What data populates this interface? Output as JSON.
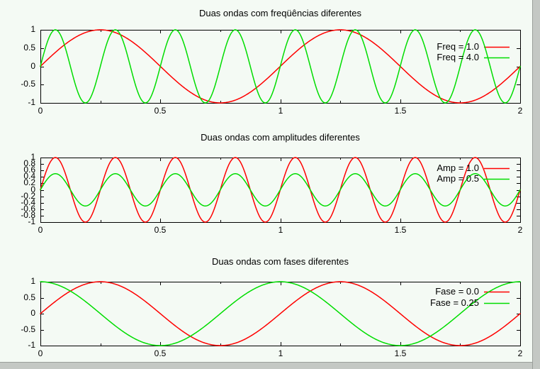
{
  "page": {
    "background": "#f4faf4",
    "text_color": "#000000",
    "scrollbar": {
      "track": "#c4c8c4",
      "edge": "#9a9e9a"
    }
  },
  "chart_data": [
    {
      "type": "line",
      "title": "Duas ondas com freqüências diferentes",
      "xlabel": "",
      "ylabel": "",
      "xlim": [
        0,
        2
      ],
      "ylim": [
        -1,
        1
      ],
      "grid": false,
      "legend_position": "top-right-inside",
      "xticks": {
        "values": [
          0,
          0.5,
          1,
          1.5,
          2
        ],
        "labels": [
          "0",
          "0.5",
          "1",
          "1.5",
          "2"
        ],
        "minor_values": [
          0.25,
          0.75,
          1.25,
          1.75
        ]
      },
      "yticks": {
        "values": [
          1,
          0.5,
          0,
          -0.5,
          -1
        ],
        "labels": [
          "1",
          "0.5",
          "0",
          "-0.5",
          "-1"
        ]
      },
      "series": [
        {
          "name": "Freq = 1.0",
          "color": "#ff0000",
          "amplitude": 1.0,
          "frequency": 1.0,
          "phase": 0.0,
          "formula": "y = 1.0*sin(2*pi*1.0*(x+0.0))"
        },
        {
          "name": "Freq = 4.0",
          "color": "#00dd00",
          "amplitude": 1.0,
          "frequency": 4.0,
          "phase": 0.0,
          "formula": "y = 1.0*sin(2*pi*4.0*(x+0.0))"
        }
      ]
    },
    {
      "type": "line",
      "title": "Duas ondas com amplitudes diferentes",
      "xlabel": "",
      "ylabel": "",
      "xlim": [
        0,
        2
      ],
      "ylim": [
        -1,
        1
      ],
      "grid": false,
      "legend_position": "top-right-inside",
      "xticks": {
        "values": [
          0,
          0.5,
          1,
          1.5,
          2
        ],
        "labels": [
          "0",
          "0.5",
          "1",
          "1.5",
          "2"
        ],
        "minor_values": [
          0.25,
          0.75,
          1.25,
          1.75
        ]
      },
      "yticks": {
        "values": [
          1,
          0.8,
          0.6,
          0.4,
          0.2,
          0,
          -0.2,
          -0.4,
          -0.6,
          -0.8,
          -1
        ],
        "labels": [
          "1",
          "0.8",
          "0.6",
          "0.4",
          "0.2",
          "0",
          "-0.2",
          "-0.4",
          "-0.6",
          "-0.8",
          "-1"
        ]
      },
      "series": [
        {
          "name": "Amp = 1.0",
          "color": "#ff0000",
          "amplitude": 1.0,
          "frequency": 4.0,
          "phase": 0.0,
          "formula": "y = 1.0*sin(2*pi*4.0*(x+0.0))"
        },
        {
          "name": "Amp = 0.5",
          "color": "#00dd00",
          "amplitude": 0.5,
          "frequency": 4.0,
          "phase": 0.0,
          "formula": "y = 0.5*sin(2*pi*4.0*(x+0.0))"
        }
      ]
    },
    {
      "type": "line",
      "title": "Duas ondas com fases diferentes",
      "xlabel": "",
      "ylabel": "",
      "xlim": [
        0,
        2
      ],
      "ylim": [
        -1,
        1
      ],
      "grid": false,
      "legend_position": "top-right-inside",
      "xticks": {
        "values": [
          0,
          0.5,
          1,
          1.5,
          2
        ],
        "labels": [
          "0",
          "0.5",
          "1",
          "1.5",
          "2"
        ],
        "minor_values": [
          0.25,
          0.75,
          1.25,
          1.75
        ]
      },
      "yticks": {
        "values": [
          1,
          0.5,
          0,
          -0.5,
          -1
        ],
        "labels": [
          "1",
          "0.5",
          "0",
          "-0.5",
          "-1"
        ]
      },
      "series": [
        {
          "name": "Fase = 0.0",
          "color": "#ff0000",
          "amplitude": 1.0,
          "frequency": 1.0,
          "phase": 0.0,
          "formula": "y = 1.0*sin(2*pi*1.0*(x+0.0))"
        },
        {
          "name": "Fase = 0.25",
          "color": "#00dd00",
          "amplitude": 1.0,
          "frequency": 1.0,
          "phase": 0.25,
          "formula": "y = 1.0*sin(2*pi*1.0*(x+0.25))"
        }
      ]
    }
  ]
}
